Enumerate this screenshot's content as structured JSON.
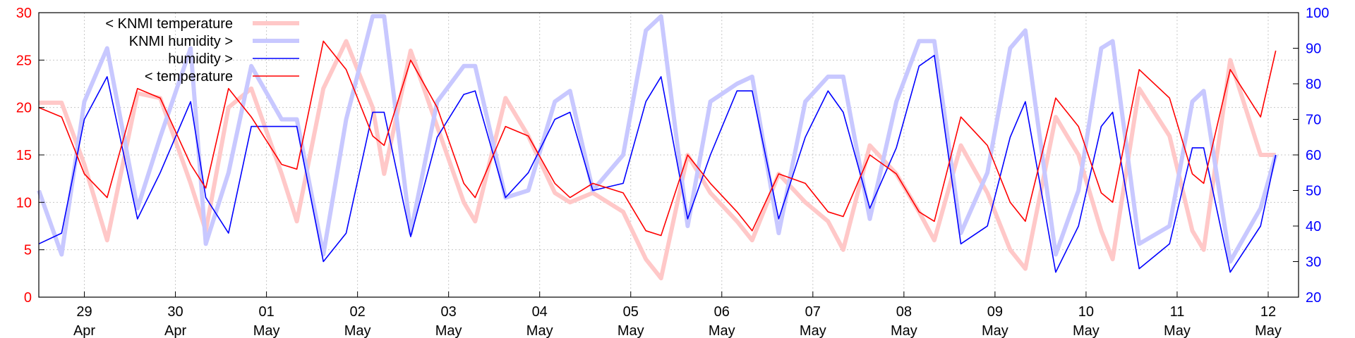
{
  "chart_data": {
    "type": "line",
    "title": "",
    "xlabel": "",
    "ylabel": "",
    "x_ticks": [
      {
        "day": "29",
        "month": "Apr"
      },
      {
        "day": "30",
        "month": "Apr"
      },
      {
        "day": "01",
        "month": "May"
      },
      {
        "day": "02",
        "month": "May"
      },
      {
        "day": "03",
        "month": "May"
      },
      {
        "day": "04",
        "month": "May"
      },
      {
        "day": "05",
        "month": "May"
      },
      {
        "day": "06",
        "month": "May"
      },
      {
        "day": "07",
        "month": "May"
      },
      {
        "day": "08",
        "month": "May"
      },
      {
        "day": "09",
        "month": "May"
      },
      {
        "day": "10",
        "month": "May"
      },
      {
        "day": "11",
        "month": "May"
      },
      {
        "day": "12",
        "month": "May"
      }
    ],
    "xlim": [
      "28 Apr 12:00",
      "12 May 08:00"
    ],
    "y_left": {
      "ticks": [
        "0",
        "5",
        "10",
        "15",
        "20",
        "25",
        "30"
      ],
      "range": [
        0,
        30
      ],
      "color": "#ff0000"
    },
    "y_right": {
      "ticks": [
        "20",
        "30",
        "40",
        "50",
        "60",
        "70",
        "80",
        "90",
        "100"
      ],
      "range": [
        20,
        100
      ],
      "color": "#0000ff"
    },
    "grid": true,
    "legend": {
      "placement": "top-left",
      "entries": [
        "< KNMI temperature",
        "KNMI humidity >",
        "humidity >",
        "< temperature"
      ]
    },
    "series": [
      {
        "name": "< KNMI temperature",
        "axis": "left",
        "color": "#ffc8c8",
        "x": [
          "28 Apr 12:00",
          "28 Apr 18:00",
          "29 Apr 00:00",
          "29 Apr 06:00",
          "29 Apr 14:00",
          "29 Apr 20:00",
          "30 Apr 04:00",
          "30 Apr 08:00",
          "30 Apr 14:00",
          "30 Apr 20:00",
          "01 May 04:00",
          "01 May 08:00",
          "01 May 15:00",
          "01 May 21:00",
          "02 May 04:00",
          "02 May 07:00",
          "02 May 14:00",
          "02 May 21:00",
          "03 May 04:00",
          "03 May 07:00",
          "03 May 15:00",
          "03 May 21:00",
          "04 May 04:00",
          "04 May 08:00",
          "04 May 14:00",
          "04 May 22:00",
          "05 May 04:00",
          "05 May 08:00",
          "05 May 15:00",
          "05 May 21:00",
          "06 May 04:00",
          "06 May 08:00",
          "06 May 15:00",
          "06 May 22:00",
          "07 May 04:00",
          "07 May 08:00",
          "07 May 15:00",
          "07 May 22:00",
          "08 May 04:00",
          "08 May 08:00",
          "08 May 15:00",
          "08 May 22:00",
          "09 May 04:00",
          "09 May 08:00",
          "09 May 16:00",
          "09 May 22:00",
          "10 May 04:00",
          "10 May 07:00",
          "10 May 14:00",
          "10 May 22:00",
          "11 May 04:00",
          "11 May 07:00",
          "11 May 14:00",
          "11 May 22:00",
          "12 May 02:00"
        ],
        "y": [
          20.5,
          20.5,
          14,
          6,
          21.5,
          21,
          12,
          7,
          20,
          22,
          13,
          8,
          22,
          27,
          20,
          13,
          26,
          18,
          10,
          8,
          21,
          17,
          11,
          10,
          11,
          9,
          4,
          2,
          15,
          11,
          8,
          6,
          13,
          10,
          8,
          5,
          16,
          13,
          9,
          6,
          16,
          11,
          5,
          3,
          19,
          15,
          7,
          4,
          22,
          17,
          7,
          5,
          25,
          15,
          15
        ]
      },
      {
        "name": "KNMI humidity >",
        "axis": "right",
        "color": "#c8c8ff",
        "x": [
          "28 Apr 12:00",
          "28 Apr 18:00",
          "29 Apr 00:00",
          "29 Apr 06:00",
          "29 Apr 14:00",
          "29 Apr 20:00",
          "30 Apr 04:00",
          "30 Apr 08:00",
          "30 Apr 14:00",
          "30 Apr 20:00",
          "01 May 04:00",
          "01 May 08:00",
          "01 May 15:00",
          "01 May 21:00",
          "02 May 04:00",
          "02 May 07:00",
          "02 May 14:00",
          "02 May 21:00",
          "03 May 04:00",
          "03 May 07:00",
          "03 May 15:00",
          "03 May 21:00",
          "04 May 04:00",
          "04 May 08:00",
          "04 May 14:00",
          "04 May 22:00",
          "05 May 04:00",
          "05 May 08:00",
          "05 May 15:00",
          "05 May 21:00",
          "06 May 04:00",
          "06 May 08:00",
          "06 May 15:00",
          "06 May 22:00",
          "07 May 04:00",
          "07 May 08:00",
          "07 May 15:00",
          "07 May 22:00",
          "08 May 04:00",
          "08 May 08:00",
          "08 May 15:00",
          "08 May 22:00",
          "09 May 04:00",
          "09 May 08:00",
          "09 May 16:00",
          "09 May 22:00",
          "10 May 04:00",
          "10 May 07:00",
          "10 May 14:00",
          "10 May 22:00",
          "11 May 04:00",
          "11 May 07:00",
          "11 May 14:00",
          "11 May 22:00",
          "12 May 02:00"
        ],
        "y": [
          50,
          32,
          75,
          90,
          45,
          65,
          90,
          35,
          55,
          85,
          70,
          70,
          32,
          70,
          99,
          99,
          38,
          75,
          85,
          85,
          48,
          50,
          75,
          78,
          50,
          60,
          95,
          99,
          40,
          75,
          80,
          82,
          38,
          75,
          82,
          82,
          42,
          75,
          92,
          92,
          38,
          55,
          90,
          95,
          32,
          50,
          90,
          92,
          35,
          40,
          75,
          78,
          30,
          45,
          60
        ]
      },
      {
        "name": "humidity >",
        "axis": "right",
        "color": "#0000ff",
        "x": [
          "28 Apr 12:00",
          "28 Apr 18:00",
          "29 Apr 00:00",
          "29 Apr 06:00",
          "29 Apr 14:00",
          "29 Apr 20:00",
          "30 Apr 04:00",
          "30 Apr 08:00",
          "30 Apr 14:00",
          "30 Apr 20:00",
          "01 May 04:00",
          "01 May 08:00",
          "01 May 15:00",
          "01 May 21:00",
          "02 May 04:00",
          "02 May 07:00",
          "02 May 14:00",
          "02 May 21:00",
          "03 May 04:00",
          "03 May 07:00",
          "03 May 15:00",
          "03 May 21:00",
          "04 May 04:00",
          "04 May 08:00",
          "04 May 14:00",
          "04 May 22:00",
          "05 May 04:00",
          "05 May 08:00",
          "05 May 15:00",
          "05 May 21:00",
          "06 May 04:00",
          "06 May 08:00",
          "06 May 15:00",
          "06 May 22:00",
          "07 May 04:00",
          "07 May 08:00",
          "07 May 15:00",
          "07 May 22:00",
          "08 May 04:00",
          "08 May 08:00",
          "08 May 15:00",
          "08 May 22:00",
          "09 May 04:00",
          "09 May 08:00",
          "09 May 16:00",
          "09 May 22:00",
          "10 May 04:00",
          "10 May 07:00",
          "10 May 14:00",
          "10 May 22:00",
          "11 May 04:00",
          "11 May 07:00",
          "11 May 14:00",
          "11 May 22:00",
          "12 May 02:00"
        ],
        "y": [
          35,
          38,
          70,
          82,
          42,
          55,
          75,
          48,
          38,
          68,
          68,
          68,
          30,
          38,
          72,
          72,
          37,
          65,
          77,
          78,
          48,
          55,
          70,
          72,
          50,
          52,
          75,
          82,
          42,
          60,
          78,
          78,
          42,
          65,
          78,
          72,
          45,
          62,
          85,
          88,
          35,
          40,
          65,
          75,
          27,
          40,
          68,
          72,
          28,
          35,
          62,
          62,
          27,
          40,
          60
        ]
      },
      {
        "name": "< temperature",
        "axis": "left",
        "color": "#ff0000",
        "x": [
          "28 Apr 12:00",
          "28 Apr 18:00",
          "29 Apr 00:00",
          "29 Apr 06:00",
          "29 Apr 14:00",
          "29 Apr 20:00",
          "30 Apr 04:00",
          "30 Apr 08:00",
          "30 Apr 14:00",
          "30 Apr 20:00",
          "01 May 04:00",
          "01 May 08:00",
          "01 May 15:00",
          "01 May 21:00",
          "02 May 04:00",
          "02 May 07:00",
          "02 May 14:00",
          "02 May 21:00",
          "03 May 04:00",
          "03 May 07:00",
          "03 May 15:00",
          "03 May 21:00",
          "04 May 04:00",
          "04 May 08:00",
          "04 May 14:00",
          "04 May 22:00",
          "05 May 04:00",
          "05 May 08:00",
          "05 May 15:00",
          "05 May 21:00",
          "06 May 04:00",
          "06 May 08:00",
          "06 May 15:00",
          "06 May 22:00",
          "07 May 04:00",
          "07 May 08:00",
          "07 May 15:00",
          "07 May 22:00",
          "08 May 04:00",
          "08 May 08:00",
          "08 May 15:00",
          "08 May 22:00",
          "09 May 04:00",
          "09 May 08:00",
          "09 May 16:00",
          "09 May 22:00",
          "10 May 04:00",
          "10 May 07:00",
          "10 May 14:00",
          "10 May 22:00",
          "11 May 04:00",
          "11 May 07:00",
          "11 May 14:00",
          "11 May 22:00",
          "12 May 02:00"
        ],
        "y": [
          20,
          19,
          13,
          10.5,
          22,
          21,
          14,
          11.5,
          22,
          19,
          14,
          13.5,
          27,
          24,
          17,
          16,
          25,
          20,
          12,
          10.5,
          18,
          17,
          12,
          10.5,
          12,
          11,
          7,
          6.5,
          15,
          12,
          9,
          7,
          13,
          12,
          9,
          8.5,
          15,
          13,
          9,
          8,
          19,
          16,
          10,
          8,
          21,
          18,
          11,
          10,
          24,
          21,
          13,
          12,
          24,
          19,
          26
        ]
      }
    ]
  }
}
